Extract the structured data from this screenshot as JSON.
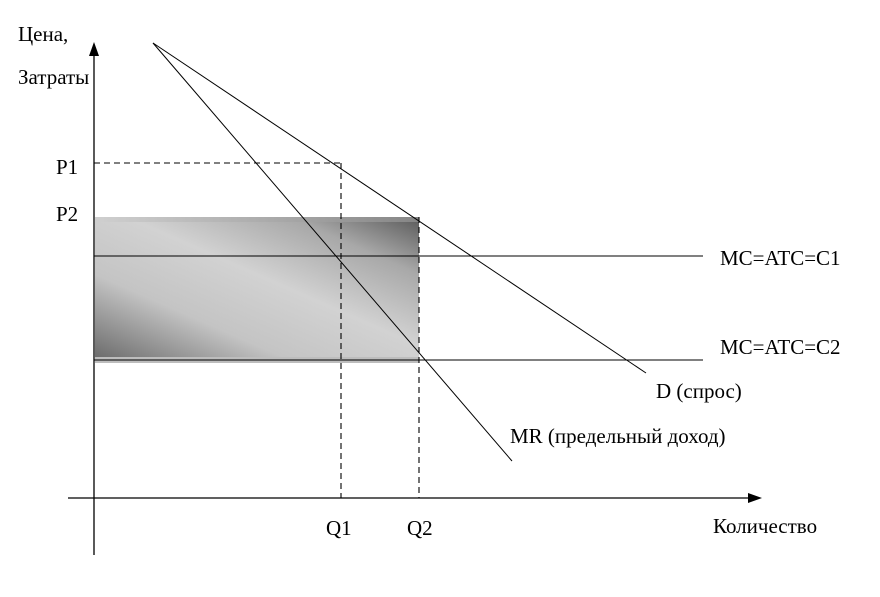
{
  "y_axis_label_line1": "Цена,",
  "y_axis_label_line2": "Затраты",
  "x_axis_label": "Количество",
  "price_labels": {
    "p1": "P1",
    "p2": "P2"
  },
  "quantity_labels": {
    "q1": "Q1",
    "q2": "Q2"
  },
  "cost_lines": {
    "c1": "MC=ATC=C1",
    "c2": "MC=ATC=C2"
  },
  "demand_label": "D (спрос)",
  "mr_label": "MR (предельный доход)"
}
